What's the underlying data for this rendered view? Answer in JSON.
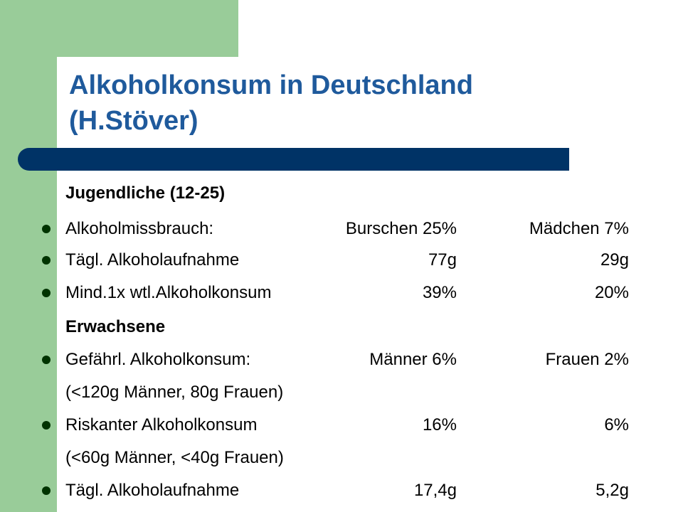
{
  "title": [
    "Alkoholkonsum in Deutschland",
    "(H.Stöver)"
  ],
  "rows": [
    {
      "bullet": false,
      "bold": true,
      "cells": [
        "Jugendliche (12-25)"
      ]
    },
    {
      "bullet": true,
      "bold": false,
      "cells": [
        "Alkoholmissbrauch:",
        "Burschen 25%",
        "Mädchen 7%"
      ]
    },
    {
      "bullet": true,
      "bold": false,
      "cells": [
        "Tägl. Alkoholaufnahme",
        "77g",
        "29g"
      ]
    },
    {
      "bullet": true,
      "bold": false,
      "cells": [
        "Mind.1x wtl.Alkoholkonsum",
        "39%",
        "20%"
      ]
    },
    {
      "bullet": false,
      "bold": true,
      "cells": [
        "Erwachsene"
      ]
    },
    {
      "bullet": true,
      "bold": false,
      "cells": [
        "Gefährl. Alkoholkonsum:",
        "Männer 6%",
        "Frauen 2%"
      ]
    },
    {
      "bullet": false,
      "bold": false,
      "cells": [
        "(<120g Männer, 80g Frauen)"
      ]
    },
    {
      "bullet": true,
      "bold": false,
      "cells": [
        "Riskanter Alkoholkonsum",
        "16%",
        "6%"
      ]
    },
    {
      "bullet": false,
      "bold": false,
      "cells": [
        "(<60g Männer, <40g Frauen)"
      ]
    },
    {
      "bullet": true,
      "bold": false,
      "cells": [
        "Tägl. Alkoholaufnahme",
        "17,4g",
        "5,2g"
      ]
    }
  ]
}
